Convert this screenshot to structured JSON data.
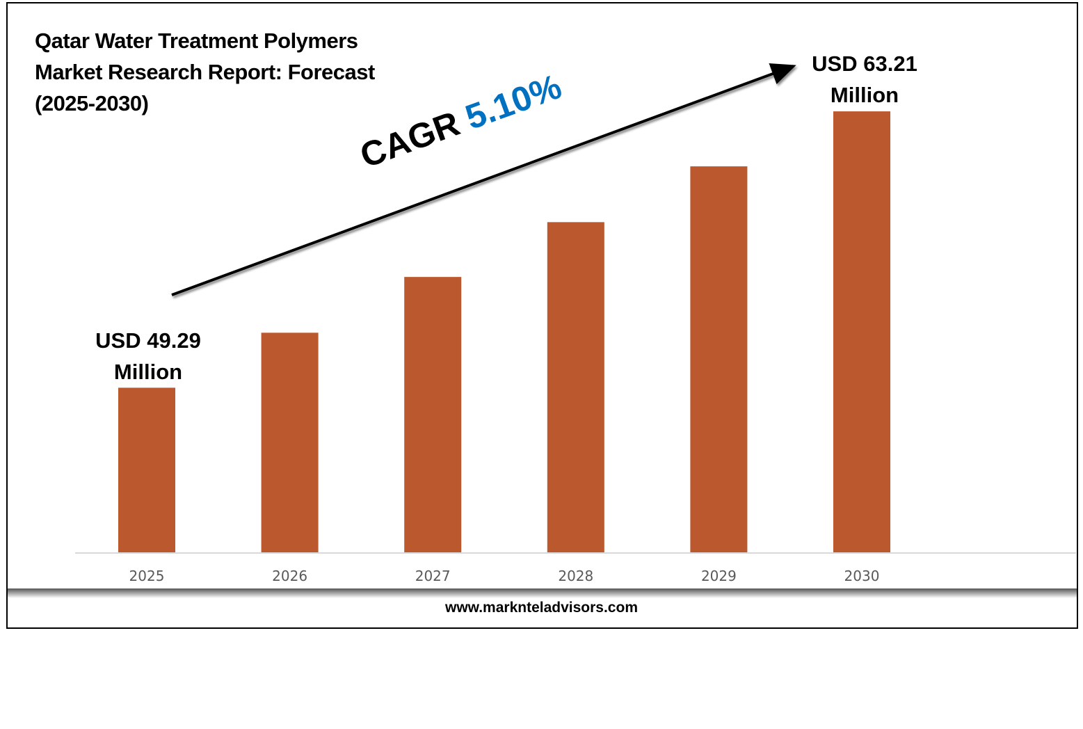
{
  "chart_data": {
    "type": "bar",
    "title": "Qatar Water Treatment Polymers Market Research Report: Forecast (2025-2030)",
    "categories": [
      "2025",
      "2026",
      "2027",
      "2028",
      "2029",
      "2030"
    ],
    "values": [
      49.29,
      52.06,
      54.87,
      57.63,
      60.44,
      63.21
    ],
    "ylim": [
      41,
      65
    ],
    "bar_color": "#bc582d",
    "grid": false,
    "annotations": {
      "start_label": [
        "USD 49.29",
        "Million"
      ],
      "end_label": [
        "USD 63.21",
        "Million"
      ],
      "cagr_prefix": "CAGR",
      "cagr_value": "5.10%",
      "cagr_color": "#0070c0"
    },
    "xlabel": "",
    "ylabel": ""
  },
  "footer": "www.marknteladvisors.com"
}
